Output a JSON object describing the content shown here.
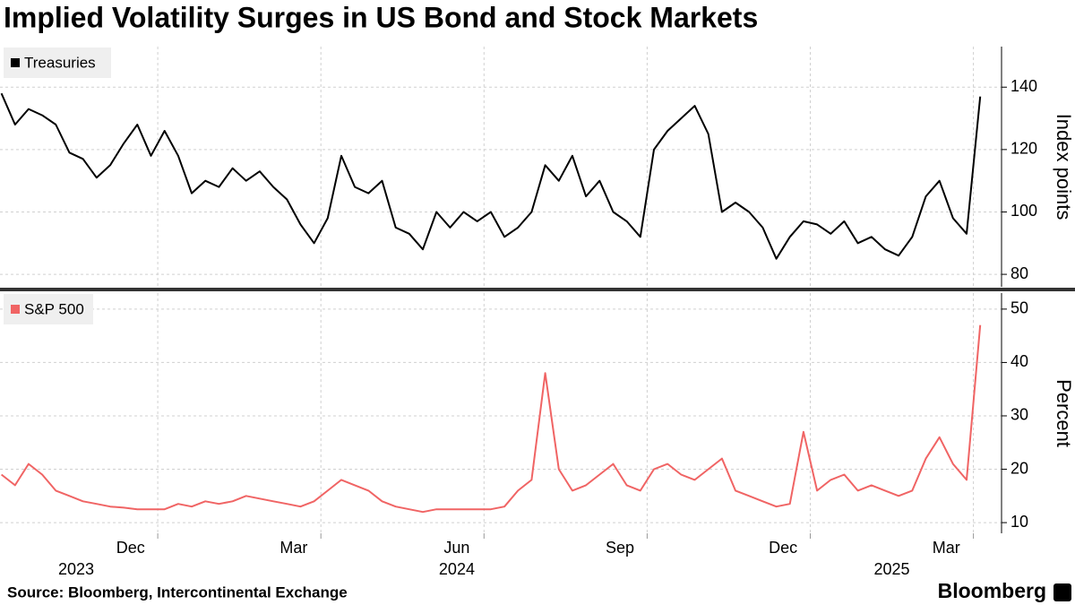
{
  "title": "Implied Volatility Surges in US Bond and Stock Markets",
  "footer": {
    "source": "Source: Bloomberg, Intercontinental Exchange",
    "brand": "Bloomberg"
  },
  "chart_data": [
    {
      "type": "line",
      "y_label": "Index points",
      "ylim": [
        76,
        153
      ],
      "yticks": [
        80,
        100,
        120,
        140
      ],
      "grid": true,
      "x": [
        "2023-10",
        "2023-10",
        "2023-10",
        "2023-10",
        "2023-11",
        "2023-11",
        "2023-11",
        "2023-11",
        "2023-12",
        "2023-12",
        "2023-12",
        "2023-12",
        "2024-01",
        "2024-01",
        "2024-01",
        "2024-01",
        "2024-02",
        "2024-02",
        "2024-02",
        "2024-02",
        "2024-03",
        "2024-03",
        "2024-03",
        "2024-03",
        "2024-04",
        "2024-04",
        "2024-04",
        "2024-04",
        "2024-05",
        "2024-05",
        "2024-05",
        "2024-05",
        "2024-06",
        "2024-06",
        "2024-06",
        "2024-06",
        "2024-07",
        "2024-07",
        "2024-07",
        "2024-07",
        "2024-08",
        "2024-08",
        "2024-08",
        "2024-08",
        "2024-09",
        "2024-09",
        "2024-09",
        "2024-09",
        "2024-10",
        "2024-10",
        "2024-10",
        "2024-10",
        "2024-11",
        "2024-11",
        "2024-11",
        "2024-11",
        "2024-12",
        "2024-12",
        "2024-12",
        "2024-12",
        "2025-01",
        "2025-01",
        "2025-01",
        "2025-01",
        "2025-02",
        "2025-02",
        "2025-02",
        "2025-02",
        "2025-03",
        "2025-03",
        "2025-03",
        "2025-03",
        "2025-04"
      ],
      "series": [
        {
          "name": "Treasuries",
          "color": "#000000",
          "values": [
            138,
            128,
            133,
            131,
            128,
            119,
            117,
            111,
            115,
            122,
            128,
            118,
            126,
            118,
            106,
            110,
            108,
            114,
            110,
            113,
            108,
            104,
            96,
            90,
            98,
            118,
            108,
            106,
            110,
            95,
            93,
            88,
            100,
            95,
            100,
            97,
            100,
            92,
            95,
            100,
            115,
            110,
            118,
            105,
            110,
            100,
            97,
            92,
            120,
            126,
            130,
            134,
            125,
            100,
            103,
            100,
            95,
            85,
            92,
            97,
            96,
            93,
            97,
            90,
            92,
            88,
            86,
            92,
            105,
            110,
            98,
            93,
            137
          ]
        }
      ]
    },
    {
      "type": "line",
      "y_label": "Percent",
      "ylim": [
        8,
        53
      ],
      "yticks": [
        10,
        20,
        30,
        40,
        50
      ],
      "grid": true,
      "x": [
        "2023-10",
        "2023-10",
        "2023-10",
        "2023-10",
        "2023-11",
        "2023-11",
        "2023-11",
        "2023-11",
        "2023-12",
        "2023-12",
        "2023-12",
        "2023-12",
        "2024-01",
        "2024-01",
        "2024-01",
        "2024-01",
        "2024-02",
        "2024-02",
        "2024-02",
        "2024-02",
        "2024-03",
        "2024-03",
        "2024-03",
        "2024-03",
        "2024-04",
        "2024-04",
        "2024-04",
        "2024-04",
        "2024-05",
        "2024-05",
        "2024-05",
        "2024-05",
        "2024-06",
        "2024-06",
        "2024-06",
        "2024-06",
        "2024-07",
        "2024-07",
        "2024-07",
        "2024-07",
        "2024-08",
        "2024-08",
        "2024-08",
        "2024-08",
        "2024-09",
        "2024-09",
        "2024-09",
        "2024-09",
        "2024-10",
        "2024-10",
        "2024-10",
        "2024-10",
        "2024-11",
        "2024-11",
        "2024-11",
        "2024-11",
        "2024-12",
        "2024-12",
        "2024-12",
        "2024-12",
        "2025-01",
        "2025-01",
        "2025-01",
        "2025-01",
        "2025-02",
        "2025-02",
        "2025-02",
        "2025-02",
        "2025-03",
        "2025-03",
        "2025-03",
        "2025-03",
        "2025-04"
      ],
      "xticks": [
        {
          "value": "2023-12",
          "label": "Dec"
        },
        {
          "value": "2024-03",
          "label": "Mar"
        },
        {
          "value": "2024-06",
          "label": "Jun"
        },
        {
          "value": "2024-09",
          "label": "Sep"
        },
        {
          "value": "2024-12",
          "label": "Dec"
        },
        {
          "value": "2025-03",
          "label": "Mar"
        }
      ],
      "year_ticks": [
        {
          "value": "2023-11",
          "label": "2023"
        },
        {
          "value": "2024-06",
          "label": "2024"
        },
        {
          "value": "2025-02",
          "label": "2025"
        }
      ],
      "series": [
        {
          "name": "S&P 500",
          "color": "#f06464",
          "values": [
            19,
            17,
            21,
            19,
            16,
            15,
            14,
            13.5,
            13,
            12.8,
            12.5,
            12.5,
            12.5,
            13.5,
            13,
            14,
            13.5,
            14,
            15,
            14.5,
            14,
            13.5,
            13,
            14,
            16,
            18,
            17,
            16,
            14,
            13,
            12.5,
            12,
            12.5,
            12.5,
            12.5,
            12.5,
            12.5,
            13,
            16,
            18,
            38,
            20,
            16,
            17,
            19,
            21,
            17,
            16,
            20,
            21,
            19,
            18,
            20,
            22,
            16,
            15,
            14,
            13,
            13.5,
            27,
            16,
            18,
            19,
            16,
            17,
            16,
            15,
            16,
            22,
            26,
            21,
            18,
            47
          ]
        }
      ]
    }
  ]
}
